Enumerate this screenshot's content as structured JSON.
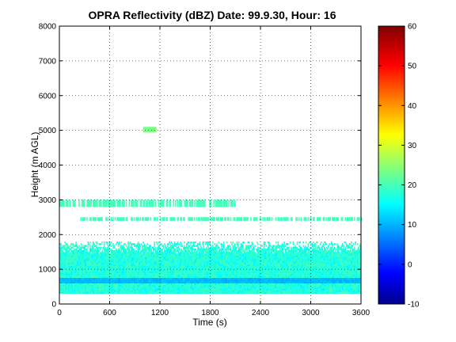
{
  "chart_data": {
    "type": "heatmap",
    "title": "OPRA Reflectivity (dBZ)  Date: 99.9.30, Hour: 16",
    "xlabel": "Time (s)",
    "ylabel": "Height (m AGL)",
    "xlim": [
      0,
      3600
    ],
    "ylim": [
      0,
      8000
    ],
    "xticks": [
      "0",
      "600",
      "1200",
      "1800",
      "2400",
      "3000",
      "3600"
    ],
    "yticks": [
      "0",
      "1000",
      "2000",
      "3000",
      "4000",
      "5000",
      "6000",
      "7000",
      "8000"
    ],
    "grid": true,
    "colorbar": {
      "colormap": "jet",
      "range": [
        -10,
        60
      ],
      "ticks": [
        "-10",
        "0",
        "10",
        "20",
        "30",
        "40",
        "50",
        "60"
      ]
    },
    "layers": [
      {
        "height_range_m": [
          300,
          1800
        ],
        "time_range_s": [
          0,
          3600
        ],
        "dbz_approx": [
          15,
          22
        ]
      },
      {
        "height_range_m": [
          600,
          750
        ],
        "time_range_s": [
          0,
          3600
        ],
        "dbz_approx": [
          10,
          13
        ]
      },
      {
        "height_range_m": [
          2400,
          2500
        ],
        "time_range_s": [
          250,
          3600
        ],
        "dbz_approx": [
          20,
          22
        ],
        "intermittent": true
      },
      {
        "height_range_m": [
          2800,
          3000
        ],
        "time_range_s": [
          0,
          2100
        ],
        "dbz_approx": [
          20,
          22
        ],
        "intermittent": true
      },
      {
        "height_range_m": [
          4950,
          5100
        ],
        "time_range_s": [
          1000,
          1150
        ],
        "dbz_approx": [
          24,
          26
        ]
      }
    ]
  }
}
